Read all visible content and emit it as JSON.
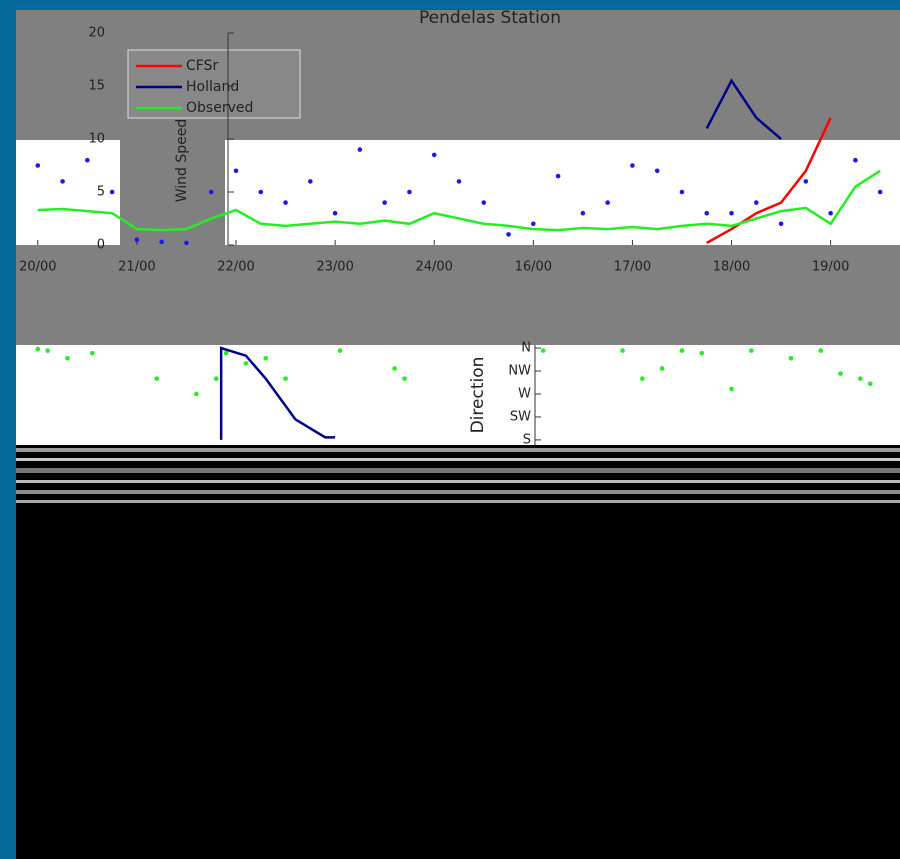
{
  "chart_data": [
    {
      "type": "line",
      "title": "Pendelas Station",
      "ylabel": "Wind Speed (m/s)",
      "x": [
        0,
        0.25,
        0.5,
        0.75,
        1,
        1.25,
        1.5,
        1.75,
        2,
        2.25,
        2.5,
        2.75,
        3,
        3.25,
        3.5,
        3.75,
        4,
        4.25,
        4.5,
        4.75,
        5,
        5.25,
        5.5,
        5.75,
        6,
        6.25,
        6.5,
        6.75,
        7,
        7.25,
        7.5,
        7.75,
        8,
        8.25,
        8.5
      ],
      "xlim": [
        -0.22,
        8.7
      ],
      "xticks": [
        {
          "value": 0,
          "label": "20/00"
        },
        {
          "value": 1,
          "label": "21/00"
        },
        {
          "value": 2,
          "label": "22/00"
        },
        {
          "value": 3,
          "label": "23/00"
        },
        {
          "value": 4,
          "label": "24/00"
        },
        {
          "value": 5,
          "label": "16/00"
        },
        {
          "value": 6,
          "label": "17/00"
        },
        {
          "value": 7,
          "label": "18/00"
        },
        {
          "value": 8,
          "label": "19/00"
        }
      ],
      "ylim": [
        0,
        20
      ],
      "yticks": [
        0,
        5,
        10,
        15,
        20
      ],
      "series": [
        {
          "name": "CFSr",
          "color": "#ff0000",
          "style": "line",
          "values": [
            null,
            null,
            null,
            null,
            null,
            null,
            null,
            null,
            null,
            null,
            null,
            null,
            null,
            null,
            null,
            null,
            null,
            null,
            null,
            null,
            null,
            null,
            null,
            null,
            null,
            null,
            null,
            0.2,
            1.5,
            3,
            4,
            7,
            12,
            null,
            null
          ]
        },
        {
          "name": "Holland",
          "color": "#00008b",
          "style": "line",
          "values": [
            null,
            null,
            null,
            null,
            null,
            null,
            null,
            null,
            null,
            null,
            null,
            null,
            null,
            null,
            null,
            null,
            null,
            null,
            null,
            null,
            null,
            null,
            null,
            null,
            null,
            null,
            null,
            11,
            15.5,
            12,
            10,
            null,
            null,
            null,
            null
          ]
        },
        {
          "name": "Observed",
          "color": "#22ee22",
          "style": "line",
          "values": [
            3.3,
            3.4,
            3.2,
            3.0,
            1.5,
            1.4,
            1.5,
            2.5,
            3.3,
            2.0,
            1.8,
            2.0,
            2.2,
            2.0,
            2.3,
            2.0,
            3.0,
            2.5,
            2.0,
            1.8,
            1.5,
            1.4,
            1.6,
            1.5,
            1.7,
            1.5,
            1.8,
            2.0,
            1.8,
            2.5,
            3.2,
            3.5,
            2.0,
            5.5,
            7.0
          ]
        },
        {
          "color": "#1a1aee",
          "style": "dots",
          "values": [
            7.5,
            6,
            8,
            5,
            0.5,
            0.3,
            0.2,
            5,
            7,
            5,
            4,
            6,
            3,
            9,
            4,
            5,
            8.5,
            6,
            4,
            1,
            2,
            6.5,
            3,
            4,
            7.5,
            7,
            5,
            3,
            3,
            4,
            2,
            6,
            3,
            8,
            5
          ]
        }
      ]
    },
    {
      "type": "scatter",
      "ylabel": "Direction",
      "xlim": [
        -0.22,
        8.7
      ],
      "ylim": [
        170,
        366
      ],
      "yticks": [
        {
          "value": 360,
          "label": "N"
        },
        {
          "value": 315,
          "label": "NW"
        },
        {
          "value": 270,
          "label": "W"
        },
        {
          "value": 225,
          "label": "SW"
        },
        {
          "value": 180,
          "label": "S"
        }
      ],
      "series": [
        {
          "color": "#22ee22",
          "style": "dots",
          "x": [
            0,
            0.1,
            0.3,
            0.55,
            1.2,
            1.6,
            1.8,
            1.9,
            2.1,
            2.3,
            2.5,
            3.05,
            3.6,
            3.7,
            5.1,
            5.9,
            6.1,
            6.3,
            6.5,
            6.7,
            7.0,
            7.2,
            7.6,
            7.9,
            8.1,
            8.3,
            8.4
          ],
          "values": [
            358,
            355,
            340,
            350,
            300,
            270,
            300,
            350,
            330,
            340,
            300,
            355,
            320,
            300,
            355,
            355,
            300,
            320,
            355,
            350,
            280,
            355,
            340,
            355,
            310,
            300,
            290
          ]
        },
        {
          "color": "#00008b",
          "style": "line",
          "x": [
            1.85,
            1.85,
            2.1,
            2.3,
            2.6,
            2.9,
            3.0
          ],
          "values": [
            180,
            360,
            345,
            300,
            220,
            185,
            185
          ]
        }
      ]
    }
  ]
}
